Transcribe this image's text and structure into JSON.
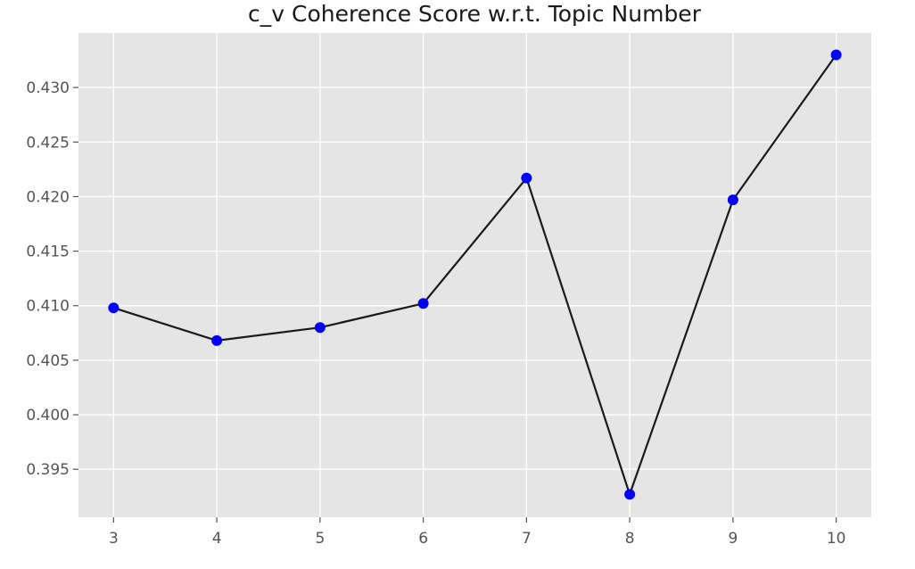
{
  "chart_data": {
    "type": "line",
    "title": "c_v Coherence Score w.r.t. Topic Number",
    "xlabel": "",
    "ylabel": "",
    "x": [
      3,
      4,
      5,
      6,
      7,
      8,
      9,
      10
    ],
    "series": [
      {
        "values": [
          0.4098,
          0.4068,
          0.408,
          0.4102,
          0.4217,
          0.3927,
          0.4197,
          0.433
        ],
        "line_color": "#1a1a1a",
        "marker_color": "#0000ff"
      }
    ],
    "xlim": [
      2.66,
      10.34
    ],
    "ylim": [
      0.3906,
      0.435
    ],
    "x_ticks": [
      "3",
      "4",
      "5",
      "6",
      "7",
      "8",
      "9",
      "10"
    ],
    "y_ticks": [
      "0.395",
      "0.400",
      "0.405",
      "0.410",
      "0.415",
      "0.420",
      "0.425",
      "0.430"
    ],
    "grid": true,
    "style": "ggplot",
    "plot_background": "#e5e5e5",
    "grid_color": "#ffffff"
  }
}
